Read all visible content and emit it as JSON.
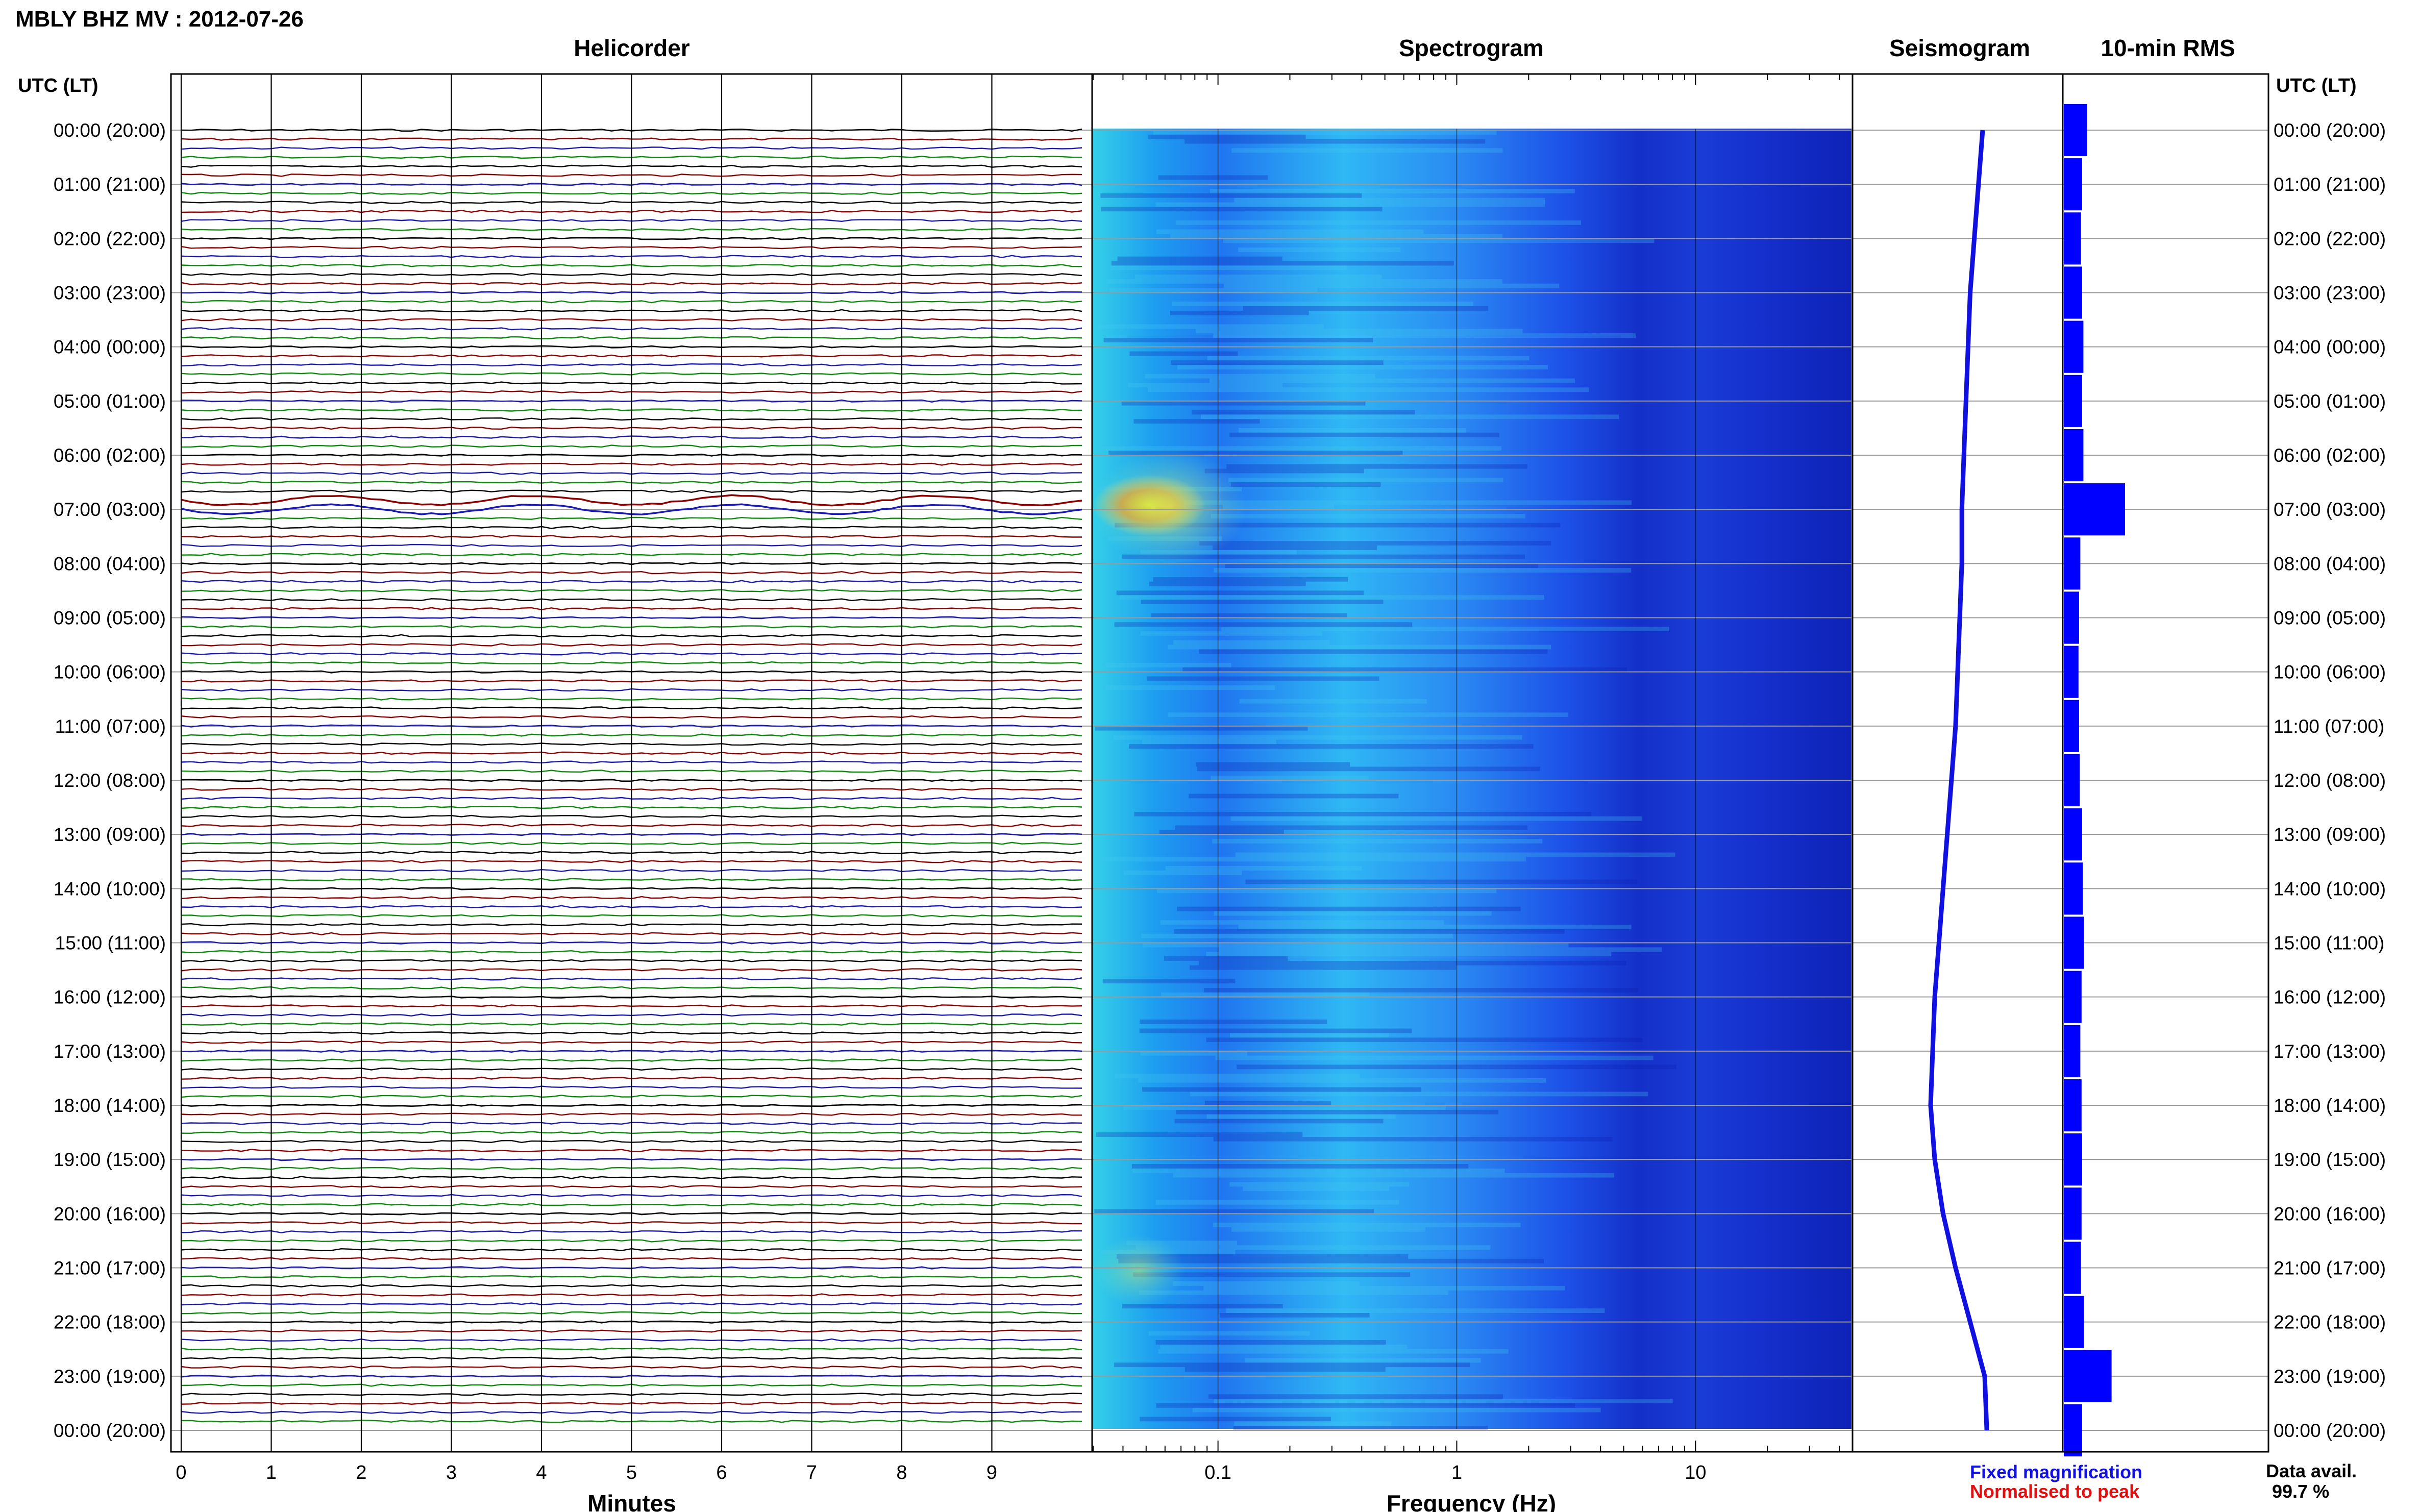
{
  "header": {
    "station_title": "MBLY BHZ MV : 2012-07-26",
    "utc_lt_label": "UTC (LT)"
  },
  "panels": {
    "helicorder": "Helicorder",
    "spectrogram": "Spectrogram",
    "seismogram": "Seismogram",
    "rms": "10-min RMS"
  },
  "footer": {
    "legend_fixed": "Fixed magnification",
    "legend_normalised": "Normalised to peak",
    "data_avail_label": "Data avail.",
    "data_avail_value": "99.7 %"
  },
  "colors": {
    "legend_fixed": "#1010e0",
    "legend_normalised": "#e01010",
    "trace_cycle": [
      "#000000",
      "#8b0000",
      "#1a1ab0",
      "#0a8a0a"
    ],
    "seismogram": "#1010e0",
    "rms": "#0000ff"
  },
  "chart_data": [
    {
      "type": "line",
      "title": "Helicorder",
      "xlabel": "Minutes",
      "x_ticks": [
        "0",
        "1",
        "2",
        "3",
        "4",
        "5",
        "6",
        "7",
        "8",
        "9"
      ],
      "xlim": [
        0,
        10
      ],
      "rows_per_hour": 6,
      "time_labels": [
        "00:00 (20:00)",
        "01:00 (21:00)",
        "02:00 (22:00)",
        "03:00 (23:00)",
        "04:00 (00:00)",
        "05:00 (01:00)",
        "06:00 (02:00)",
        "07:00 (03:00)",
        "08:00 (04:00)",
        "09:00 (05:00)",
        "10:00 (06:00)",
        "11:00 (07:00)",
        "12:00 (08:00)",
        "13:00 (09:00)",
        "14:00 (10:00)",
        "15:00 (11:00)",
        "16:00 (12:00)",
        "17:00 (13:00)",
        "18:00 (14:00)",
        "19:00 (15:00)",
        "20:00 (16:00)",
        "21:00 (17:00)",
        "22:00 (18:00)",
        "23:00 (19:00)",
        "00:00 (20:00)"
      ],
      "grid": true
    },
    {
      "type": "heatmap",
      "title": "Spectrogram",
      "xlabel": "Frequency (Hz)",
      "x_scale": "log",
      "x_ticks": [
        "0.1",
        "1",
        "10"
      ],
      "xlim": [
        0.03,
        45
      ]
    },
    {
      "type": "line",
      "title": "Seismogram",
      "x_offset_fraction": [
        0.62,
        0.6,
        0.58,
        0.56,
        0.55,
        0.54,
        0.53,
        0.52,
        0.52,
        0.51,
        0.5,
        0.49,
        0.47,
        0.45,
        0.43,
        0.41,
        0.39,
        0.38,
        0.37,
        0.39,
        0.43,
        0.49,
        0.56,
        0.63,
        0.64
      ]
    },
    {
      "type": "bar",
      "title": "10-min RMS",
      "relative_values": [
        0.38,
        0.3,
        0.28,
        0.3,
        0.32,
        0.3,
        0.32,
        1.0,
        0.27,
        0.25,
        0.24,
        0.25,
        0.26,
        0.3,
        0.31,
        0.33,
        0.29,
        0.27,
        0.29,
        0.3,
        0.29,
        0.28,
        0.33,
        0.78,
        0.3
      ]
    }
  ]
}
